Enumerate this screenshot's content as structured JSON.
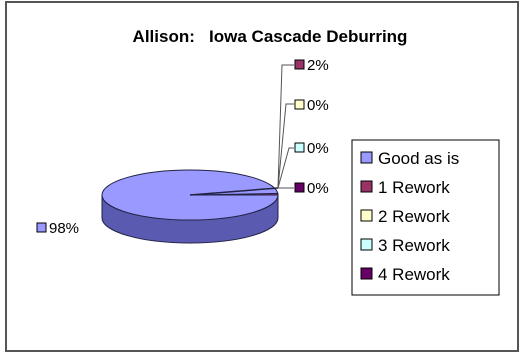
{
  "chart_data": {
    "type": "pie",
    "title": "Allison:   Iowa Cascade Deburring",
    "categories": [
      "Good as is",
      "1 Rework",
      "2 Rework",
      "3 Rework",
      "4 Rework"
    ],
    "values": [
      98,
      2,
      0,
      0,
      0
    ],
    "value_labels": [
      "98%",
      "2%",
      "0%",
      "0%",
      "0%"
    ],
    "colors": [
      "#9999ff",
      "#993366",
      "#ffffcc",
      "#ccffff",
      "#660066"
    ],
    "legend": {
      "entries": [
        "Good as is",
        "1 Rework",
        "2 Rework",
        "3 Rework",
        "4 Rework"
      ],
      "placement": "right"
    }
  }
}
